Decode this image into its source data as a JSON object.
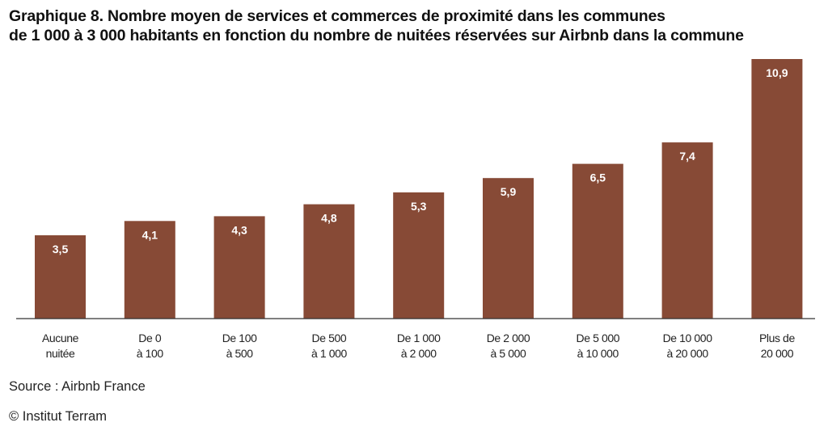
{
  "header": {
    "title_prefix": "Graphique 8.",
    "title_line1": "Nombre moyen de services et commerces de proximité dans les communes",
    "title_line2": "de 1 000 à 3 000 habitants en fonction du nombre de nuitées réservées sur Airbnb dans la commune"
  },
  "chart_data": {
    "type": "bar",
    "title": "Nombre moyen de services et commerces de proximité dans les communes de 1 000 à 3 000 habitants en fonction du nombre de nuitées réservées sur Airbnb dans la commune",
    "xlabel": "",
    "ylabel": "",
    "ylim": [
      0,
      11.2
    ],
    "grid": false,
    "categories": [
      [
        "Aucune",
        "nuitée"
      ],
      [
        "De 0",
        "à 100"
      ],
      [
        "De 100",
        "à 500"
      ],
      [
        "De 500",
        "à 1 000"
      ],
      [
        "De 1 000",
        "à 2 000"
      ],
      [
        "De 2 000",
        "à 5 000"
      ],
      [
        "De 5 000",
        "à 10 000"
      ],
      [
        "De 10 000",
        "à 20 000"
      ],
      [
        "Plus de",
        "20 000"
      ]
    ],
    "values": [
      3.5,
      4.1,
      4.3,
      4.8,
      5.3,
      5.9,
      6.5,
      7.4,
      10.9
    ],
    "value_labels": [
      "3,5",
      "4,1",
      "4,3",
      "4,8",
      "5,3",
      "5,9",
      "6,5",
      "7,4",
      "10,9"
    ],
    "bar_color": "#874a36",
    "label_color": "#ffffff"
  },
  "footer": {
    "source": "Source : Airbnb France",
    "copyright": "© Institut Terram"
  }
}
